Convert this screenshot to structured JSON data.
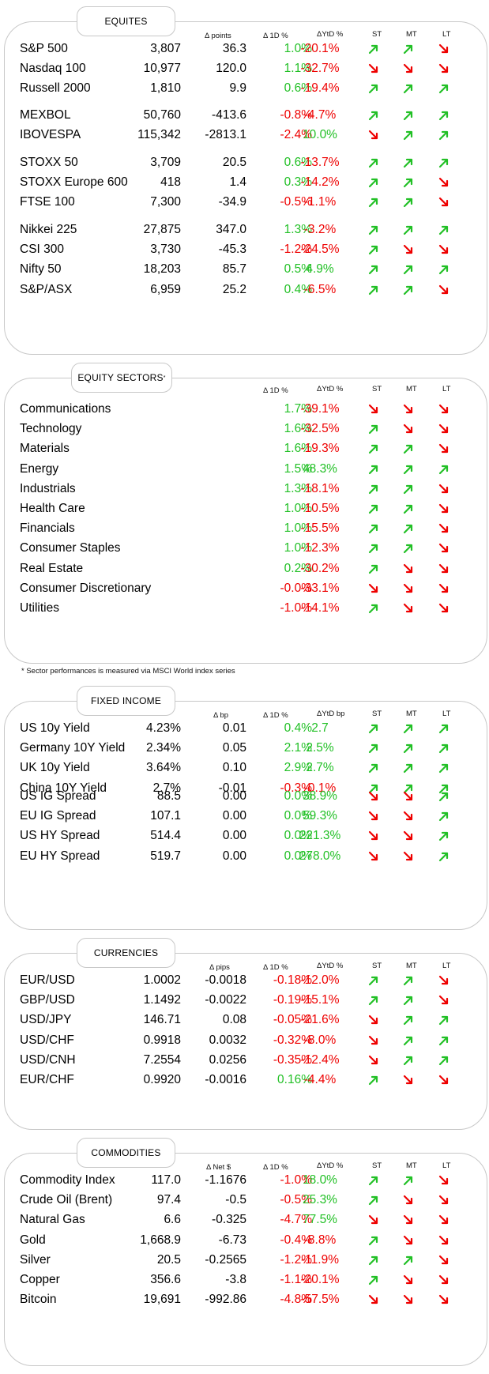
{
  "equities": {
    "title": "EQUITES",
    "headers": {
      "change": "Δ points",
      "d1": "Δ 1D %",
      "ytd": "ΔYtD %",
      "st": "ST",
      "mt": "MT",
      "lt": "LT"
    },
    "groups": [
      [
        {
          "name": "S&P 500",
          "level": "3,807",
          "change": "36.3",
          "d1": "1.0%",
          "ytd": "-20.1%",
          "st": "up",
          "mt": "up",
          "lt": "down"
        },
        {
          "name": "Nasdaq 100",
          "level": "10,977",
          "change": "120.0",
          "d1": "1.1%",
          "ytd": "-32.7%",
          "st": "down",
          "mt": "down",
          "lt": "down"
        },
        {
          "name": "Russell 2000",
          "level": "1,810",
          "change": "9.9",
          "d1": "0.6%",
          "ytd": "-19.4%",
          "st": "up",
          "mt": "up",
          "lt": "up"
        }
      ],
      [
        {
          "name": "MEXBOL",
          "level": "50,760",
          "change": "-413.6",
          "d1": "-0.8%",
          "ytd": "-4.7%",
          "st": "up",
          "mt": "up",
          "lt": "up"
        },
        {
          "name": "IBOVESPA",
          "level": "115,342",
          "change": "-2813.1",
          "d1": "-2.4%",
          "ytd": "10.0%",
          "st": "down",
          "mt": "up",
          "lt": "up"
        }
      ],
      [
        {
          "name": "STOXX 50",
          "level": "3,709",
          "change": "20.5",
          "d1": "0.6%",
          "ytd": "-13.7%",
          "st": "up",
          "mt": "up",
          "lt": "up"
        },
        {
          "name": "STOXX Europe 600",
          "level": "418",
          "change": "1.4",
          "d1": "0.3%",
          "ytd": "-14.2%",
          "st": "up",
          "mt": "up",
          "lt": "down"
        },
        {
          "name": "FTSE 100",
          "level": "7,300",
          "change": "-34.9",
          "d1": "-0.5%",
          "ytd": "-1.1%",
          "st": "up",
          "mt": "up",
          "lt": "down"
        }
      ],
      [
        {
          "name": "Nikkei 225",
          "level": "27,875",
          "change": "347.0",
          "d1": "1.3%",
          "ytd": "-3.2%",
          "st": "up",
          "mt": "up",
          "lt": "up"
        },
        {
          "name": "CSI 300",
          "level": "3,730",
          "change": "-45.3",
          "d1": "-1.2%",
          "ytd": "-24.5%",
          "st": "up",
          "mt": "down",
          "lt": "down"
        },
        {
          "name": "Nifty  50",
          "level": "18,203",
          "change": "85.7",
          "d1": "0.5%",
          "ytd": "4.9%",
          "st": "up",
          "mt": "up",
          "lt": "up"
        },
        {
          "name": "S&P/ASX",
          "level": "6,959",
          "change": "25.2",
          "d1": "0.4%",
          "ytd": "-6.5%",
          "st": "up",
          "mt": "up",
          "lt": "down"
        }
      ]
    ]
  },
  "sectors": {
    "title": "EQUITY SECTORS",
    "title_mark": "*",
    "headers": {
      "d1": "Δ 1D %",
      "ytd": "ΔYtD %",
      "st": "ST",
      "mt": "MT",
      "lt": "LT"
    },
    "rows": [
      {
        "name": "Communications",
        "d1": "1.7%",
        "ytd": "-39.1%",
        "st": "down",
        "mt": "down",
        "lt": "down"
      },
      {
        "name": "Technology",
        "d1": "1.6%",
        "ytd": "-32.5%",
        "st": "up",
        "mt": "down",
        "lt": "down"
      },
      {
        "name": "Materials",
        "d1": "1.6%",
        "ytd": "-19.3%",
        "st": "up",
        "mt": "up",
        "lt": "down"
      },
      {
        "name": "Energy",
        "d1": "1.5%",
        "ytd": "48.3%",
        "st": "up",
        "mt": "up",
        "lt": "up"
      },
      {
        "name": "Industrials",
        "d1": "1.3%",
        "ytd": "-18.1%",
        "st": "up",
        "mt": "up",
        "lt": "down"
      },
      {
        "name": "Health Care",
        "d1": "1.0%",
        "ytd": "-10.5%",
        "st": "up",
        "mt": "up",
        "lt": "down"
      },
      {
        "name": "Financials",
        "d1": "1.0%",
        "ytd": "-15.5%",
        "st": "up",
        "mt": "up",
        "lt": "down"
      },
      {
        "name": "Consumer Staples",
        "d1": "1.0%",
        "ytd": "-12.3%",
        "st": "up",
        "mt": "up",
        "lt": "down"
      },
      {
        "name": "Real Estate",
        "d1": "0.2%",
        "ytd": "-30.2%",
        "st": "up",
        "mt": "down",
        "lt": "down"
      },
      {
        "name": "Consumer Discretionary",
        "d1": "-0.0%",
        "ytd": "-33.1%",
        "st": "down",
        "mt": "down",
        "lt": "down"
      },
      {
        "name": "Utilities",
        "d1": "-1.0%",
        "ytd": "-14.1%",
        "st": "up",
        "mt": "down",
        "lt": "down"
      }
    ],
    "footnote": "* Sector performances is measured via MSCI World index series"
  },
  "fixed_income": {
    "title": "FIXED INCOME",
    "headers": {
      "change": "Δ bp",
      "d1": "Δ 1D %",
      "ytd": "ΔYtD bp",
      "st": "ST",
      "mt": "MT",
      "lt": "LT"
    },
    "groups": [
      [
        {
          "name": "US 10y Yield",
          "level": "4.23%",
          "change": "0.01",
          "d1": "0.4%",
          "ytd": "2.7",
          "st": "up",
          "mt": "up",
          "lt": "up"
        },
        {
          "name": "Germany 10Y Yield",
          "level": "2.34%",
          "change": "0.05",
          "d1": "2.1%",
          "ytd": "2.5%",
          "st": "up",
          "mt": "up",
          "lt": "up"
        },
        {
          "name": "UK 10y Yield",
          "level": "3.64%",
          "change": "0.10",
          "d1": "2.9%",
          "ytd": "2.7%",
          "st": "up",
          "mt": "up",
          "lt": "up"
        },
        {
          "name": "China 10Y Yield",
          "level": "2.7%",
          "change": "-0.01",
          "d1": "-0.3%",
          "ytd": "-0.1%",
          "st": "up",
          "mt": "up",
          "lt": "up"
        }
      ],
      [
        {
          "name": "US IG Spread",
          "level": "88.5",
          "change": "0.00",
          "d1": "0.0%",
          "ytd": "38.9%",
          "st": "down",
          "mt": "down",
          "lt": "up"
        },
        {
          "name": "EU IG Spread",
          "level": "107.1",
          "change": "0.00",
          "d1": "0.0%",
          "ytd": "59.3%",
          "st": "down",
          "mt": "down",
          "lt": "up"
        },
        {
          "name": "US HY Spread",
          "level": "514.4",
          "change": "0.00",
          "d1": "0.0%",
          "ytd": "221.3%",
          "st": "down",
          "mt": "down",
          "lt": "up"
        },
        {
          "name": "EU HY Spread",
          "level": "519.7",
          "change": "0.00",
          "d1": "0.0%",
          "ytd": "278.0%",
          "st": "down",
          "mt": "down",
          "lt": "up"
        }
      ]
    ]
  },
  "currencies": {
    "title": "CURRENCIES",
    "headers": {
      "change": "Δ pips",
      "d1": "Δ 1D %",
      "ytd": "ΔYtD %",
      "st": "ST",
      "mt": "MT",
      "lt": "LT"
    },
    "rows": [
      {
        "name": "EUR/USD",
        "level": "1.0002",
        "change": "-0.0018",
        "d1": "-0.18%",
        "ytd": "-12.0%",
        "st": "up",
        "mt": "up",
        "lt": "down"
      },
      {
        "name": "GBP/USD",
        "level": "1.1492",
        "change": "-0.0022",
        "d1": "-0.19%",
        "ytd": "-15.1%",
        "st": "up",
        "mt": "up",
        "lt": "down"
      },
      {
        "name": "USD/JPY",
        "level": "146.71",
        "change": "0.08",
        "d1": "-0.05%",
        "ytd": "-21.6%",
        "st": "down",
        "mt": "up",
        "lt": "up"
      },
      {
        "name": "USD/CHF",
        "level": "0.9918",
        "change": "0.0032",
        "d1": "-0.32%",
        "ytd": "-8.0%",
        "st": "down",
        "mt": "up",
        "lt": "up"
      },
      {
        "name": "USD/CNH",
        "level": "7.2554",
        "change": "0.0256",
        "d1": "-0.35%",
        "ytd": "-12.4%",
        "st": "down",
        "mt": "up",
        "lt": "up"
      },
      {
        "name": "EUR/CHF",
        "level": "0.9920",
        "change": "-0.0016",
        "d1": "0.16%",
        "ytd": "-4.4%",
        "st": "up",
        "mt": "down",
        "lt": "down"
      }
    ]
  },
  "commodities": {
    "title": "COMMODITIES",
    "headers": {
      "change": "Δ Net $",
      "d1": "Δ 1D %",
      "ytd": "ΔYtD %",
      "st": "ST",
      "mt": "MT",
      "lt": "LT"
    },
    "rows": [
      {
        "name": "Commodity Index",
        "level": "117.0",
        "change": "-1.1676",
        "d1": "-1.0%",
        "ytd": "18.0%",
        "st": "up",
        "mt": "up",
        "lt": "down"
      },
      {
        "name": "Crude Oil (Brent)",
        "level": "97.4",
        "change": "-0.5",
        "d1": "-0.5%",
        "ytd": "25.3%",
        "st": "up",
        "mt": "down",
        "lt": "down"
      },
      {
        "name": "Natural Gas",
        "level": "6.6",
        "change": "-0.325",
        "d1": "-4.7%",
        "ytd": "77.5%",
        "st": "down",
        "mt": "down",
        "lt": "down"
      },
      {
        "name": "Gold",
        "level": "1,668.9",
        "change": "-6.73",
        "d1": "-0.4%",
        "ytd": "-8.8%",
        "st": "up",
        "mt": "down",
        "lt": "down"
      },
      {
        "name": "Silver",
        "level": "20.5",
        "change": "-0.2565",
        "d1": "-1.2%",
        "ytd": "-11.9%",
        "st": "up",
        "mt": "up",
        "lt": "down"
      },
      {
        "name": "Copper",
        "level": "356.6",
        "change": "-3.8",
        "d1": "-1.1%",
        "ytd": "-20.1%",
        "st": "up",
        "mt": "down",
        "lt": "down"
      },
      {
        "name": "Bitcoin",
        "level": "19,691",
        "change": "-992.86",
        "d1": "-4.8%",
        "ytd": "-57.5%",
        "st": "down",
        "mt": "down",
        "lt": "down"
      }
    ]
  },
  "colors": {
    "positive": "#22c026",
    "negative": "#ee0000",
    "border": "#c8c8c8"
  }
}
